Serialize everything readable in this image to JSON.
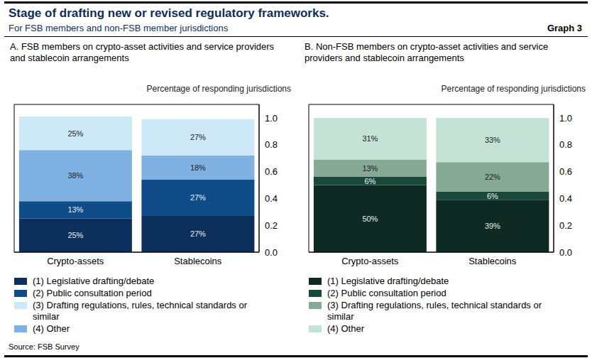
{
  "title": "Stage of drafting new or revised regulatory frameworks.",
  "subtitle": "For FSB members and non-FSB member jurisdictions",
  "graph_label": "Graph 3",
  "source": "Source: FSB Survey",
  "chart_data": [
    {
      "type": "bar",
      "title": "A. FSB members on crypto-asset activities and service providers and stablecoin arrangements",
      "y_label": "Percentage of responding jurisdictions",
      "stacked": true,
      "data_labels": true,
      "grid": false,
      "categories": [
        "Crypto-assets",
        "Stablecoins"
      ],
      "ylim": [
        0,
        1.1
      ],
      "yticks": [
        {
          "value": 0,
          "label": "0.0"
        },
        0.2,
        0.4,
        0.6,
        0.8,
        {
          "value": 1,
          "label": "1.0"
        }
      ],
      "series": [
        {
          "name": "(1) Legislative drafting/debate",
          "color": "#0c2f5c",
          "values": [
            0.25,
            0.27
          ],
          "value_labels": [
            "25%",
            "27%"
          ]
        },
        {
          "name": "(2) Public consultation period",
          "color": "#0f4c88",
          "values": [
            0.13,
            0.27
          ],
          "value_labels": [
            "13%",
            "27%"
          ]
        },
        {
          "name": "(4) Other",
          "color": "#7fb2e3",
          "values": [
            0.38,
            0.18
          ],
          "value_labels": [
            "38%",
            "18%"
          ]
        },
        {
          "name": "(3) Drafting regulations, rules, technical standards or similar",
          "color": "#cde9f8",
          "values": [
            0.25,
            0.27
          ],
          "value_labels": [
            "25%",
            "27%"
          ]
        }
      ]
    },
    {
      "type": "bar",
      "title": "B. Non-FSB members on crypto-asset activities and service providers and stablecoin arrangements",
      "y_label": "Percentage of responding jurisdictions",
      "stacked": true,
      "data_labels": true,
      "grid": false,
      "categories": [
        "Crypto-assets",
        "Stablecoins"
      ],
      "ylim": [
        0,
        1.1
      ],
      "yticks": [
        {
          "value": 0,
          "label": "0.0"
        },
        0.2,
        0.4,
        0.6,
        0.8,
        {
          "value": 1,
          "label": "1.0"
        }
      ],
      "series": [
        {
          "name": "(1) Legislative drafting/debate",
          "color": "#0e2a22",
          "values": [
            0.5,
            0.39
          ],
          "value_labels": [
            "50%",
            "39%"
          ]
        },
        {
          "name": "(2) Public consultation period",
          "color": "#18493a",
          "values": [
            0.06,
            0.06
          ],
          "value_labels": [
            "6%",
            "6%"
          ]
        },
        {
          "name": "(3) Drafting regulations, rules, technical standards or similar",
          "color": "#86a996",
          "values": [
            0.13,
            0.22
          ],
          "value_labels": [
            "13%",
            "22%"
          ]
        },
        {
          "name": "(4) Other",
          "color": "#c4e3d6",
          "values": [
            0.31,
            0.33
          ],
          "value_labels": [
            "31%",
            "33%"
          ]
        }
      ]
    }
  ]
}
